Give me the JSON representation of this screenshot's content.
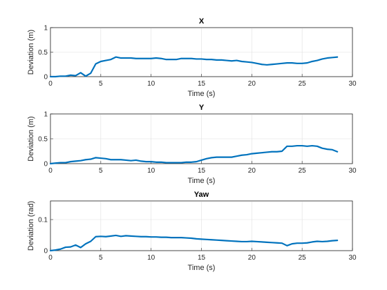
{
  "colors": {
    "series": "#0072bd",
    "axis": "#262626",
    "grid": "#dfdfdf"
  },
  "chart_data": [
    {
      "type": "line",
      "title": "X",
      "xlabel": "Time (s)",
      "ylabel": "Deviation (m)",
      "xlim": [
        0,
        30
      ],
      "ylim": [
        0,
        1
      ],
      "xticks": [
        0,
        5,
        10,
        15,
        20,
        25,
        30
      ],
      "yticks": [
        0,
        0.5,
        1
      ],
      "yticklabels": [
        "0",
        "0.5",
        "1"
      ],
      "grid": true,
      "series": [
        {
          "x": [
            0,
            0.5,
            1,
            1.5,
            2,
            2.5,
            3,
            3.5,
            4,
            4.5,
            5,
            5.5,
            6,
            6.5,
            7,
            7.5,
            8,
            8.5,
            9,
            9.5,
            10,
            10.5,
            11,
            11.5,
            12,
            12.5,
            13,
            13.5,
            14,
            14.5,
            15,
            15.5,
            16,
            16.5,
            17,
            17.5,
            18,
            18.5,
            19,
            19.5,
            20,
            20.5,
            21,
            21.5,
            22,
            22.5,
            23,
            23.5,
            24,
            24.5,
            25,
            25.5,
            26,
            26.5,
            27,
            27.5,
            28,
            28.5
          ],
          "values": [
            0.0,
            0.0,
            0.01,
            0.01,
            0.03,
            0.02,
            0.08,
            0.01,
            0.07,
            0.26,
            0.31,
            0.33,
            0.35,
            0.4,
            0.38,
            0.38,
            0.38,
            0.37,
            0.37,
            0.37,
            0.37,
            0.38,
            0.37,
            0.35,
            0.35,
            0.35,
            0.37,
            0.37,
            0.37,
            0.36,
            0.36,
            0.35,
            0.35,
            0.34,
            0.34,
            0.33,
            0.32,
            0.33,
            0.31,
            0.3,
            0.29,
            0.27,
            0.25,
            0.24,
            0.25,
            0.26,
            0.27,
            0.28,
            0.28,
            0.27,
            0.27,
            0.28,
            0.31,
            0.33,
            0.36,
            0.38,
            0.39,
            0.4
          ]
        }
      ]
    },
    {
      "type": "line",
      "title": "Y",
      "xlabel": "Time (s)",
      "ylabel": "Deviation (m)",
      "xlim": [
        0,
        30
      ],
      "ylim": [
        0,
        1
      ],
      "xticks": [
        0,
        5,
        10,
        15,
        20,
        25,
        30
      ],
      "yticks": [
        0,
        0.5,
        1
      ],
      "yticklabels": [
        "0",
        "0.5",
        "1"
      ],
      "grid": true,
      "series": [
        {
          "x": [
            0,
            0.5,
            1,
            1.5,
            2,
            2.5,
            3,
            3.5,
            4,
            4.5,
            5,
            5.5,
            6,
            6.5,
            7,
            7.5,
            8,
            8.5,
            9,
            9.5,
            10,
            10.5,
            11,
            11.5,
            12,
            12.5,
            13,
            13.5,
            14,
            14.5,
            15,
            15.5,
            16,
            16.5,
            17,
            17.5,
            18,
            18.5,
            19,
            19.5,
            20,
            20.5,
            21,
            21.5,
            22,
            22.5,
            23,
            23.5,
            24,
            24.5,
            25,
            25.5,
            26,
            26.5,
            27,
            27.5,
            28,
            28.5
          ],
          "values": [
            0.0,
            0.01,
            0.02,
            0.02,
            0.04,
            0.05,
            0.06,
            0.08,
            0.09,
            0.12,
            0.11,
            0.1,
            0.08,
            0.08,
            0.08,
            0.07,
            0.06,
            0.07,
            0.05,
            0.04,
            0.04,
            0.03,
            0.03,
            0.02,
            0.02,
            0.02,
            0.02,
            0.03,
            0.03,
            0.04,
            0.07,
            0.1,
            0.12,
            0.13,
            0.13,
            0.13,
            0.13,
            0.15,
            0.17,
            0.18,
            0.2,
            0.21,
            0.22,
            0.23,
            0.24,
            0.24,
            0.25,
            0.35,
            0.35,
            0.36,
            0.36,
            0.35,
            0.36,
            0.35,
            0.31,
            0.29,
            0.28,
            0.24
          ]
        }
      ]
    },
    {
      "type": "line",
      "title": "Yaw",
      "xlabel": "Time (s)",
      "ylabel": "Deviation (rad)",
      "xlim": [
        0,
        30
      ],
      "ylim": [
        0,
        0.16
      ],
      "xticks": [
        0,
        5,
        10,
        15,
        20,
        25,
        30
      ],
      "yticks": [
        0,
        0.1
      ],
      "yticklabels": [
        "0",
        "0.1"
      ],
      "grid": true,
      "series": [
        {
          "x": [
            0,
            0.5,
            1,
            1.5,
            2,
            2.5,
            3,
            3.5,
            4,
            4.5,
            5,
            5.5,
            6,
            6.5,
            7,
            7.5,
            8,
            8.5,
            9,
            9.5,
            10,
            10.5,
            11,
            11.5,
            12,
            12.5,
            13,
            13.5,
            14,
            14.5,
            15,
            15.5,
            16,
            16.5,
            17,
            17.5,
            18,
            18.5,
            19,
            19.5,
            20,
            20.5,
            21,
            21.5,
            22,
            22.5,
            23,
            23.5,
            24,
            24.5,
            25,
            25.5,
            26,
            26.5,
            27,
            27.5,
            28,
            28.5
          ],
          "values": [
            0.0,
            0.002,
            0.005,
            0.011,
            0.012,
            0.018,
            0.01,
            0.022,
            0.03,
            0.045,
            0.046,
            0.045,
            0.047,
            0.049,
            0.046,
            0.048,
            0.047,
            0.046,
            0.045,
            0.045,
            0.044,
            0.044,
            0.043,
            0.043,
            0.042,
            0.042,
            0.042,
            0.041,
            0.04,
            0.038,
            0.037,
            0.036,
            0.035,
            0.034,
            0.033,
            0.032,
            0.031,
            0.03,
            0.029,
            0.029,
            0.03,
            0.029,
            0.028,
            0.027,
            0.026,
            0.025,
            0.024,
            0.016,
            0.022,
            0.024,
            0.024,
            0.025,
            0.028,
            0.03,
            0.029,
            0.03,
            0.032,
            0.033
          ]
        }
      ]
    }
  ]
}
